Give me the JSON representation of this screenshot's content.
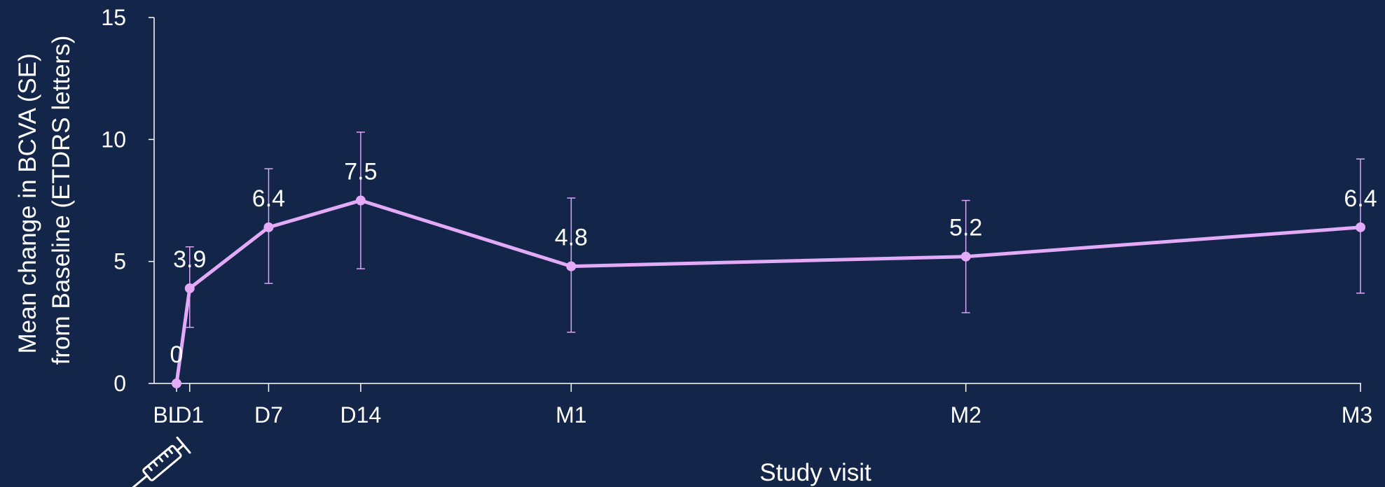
{
  "chart_data": {
    "type": "line",
    "xlabel": "Study visit",
    "ylabel_lines": [
      "Mean change in BCVA (SE)",
      "from Baseline (ETDRS letters)"
    ],
    "categories": [
      "BL",
      "D1",
      "D7",
      "D14",
      "M1",
      "M2",
      "M3"
    ],
    "x_days": [
      0,
      1,
      7,
      14,
      30,
      60,
      90
    ],
    "ylim": [
      0,
      15
    ],
    "yticks": [
      0,
      5,
      10,
      15
    ],
    "ytick_labels": [
      "0",
      "5",
      "10",
      "15"
    ],
    "series": [
      {
        "values": [
          0,
          3.9,
          6.4,
          7.5,
          4.8,
          5.2,
          6.4
        ],
        "value_labels": [
          "0",
          "3.9",
          "6.4",
          "7.5",
          "4.8",
          "5.2",
          "6.4"
        ],
        "error_lower": [
          0,
          2.3,
          4.1,
          4.7,
          2.1,
          2.9,
          3.7
        ],
        "error_upper": [
          0,
          5.6,
          8.8,
          10.3,
          7.6,
          7.5,
          9.2
        ]
      }
    ],
    "annotations": [
      {
        "icon": "syringe-icon",
        "at": "BL"
      }
    ],
    "colors": {
      "background": "#13264a",
      "series": "#e3aaf7",
      "axis": "#ffffff",
      "text": "#ffffff"
    },
    "grid": false
  }
}
